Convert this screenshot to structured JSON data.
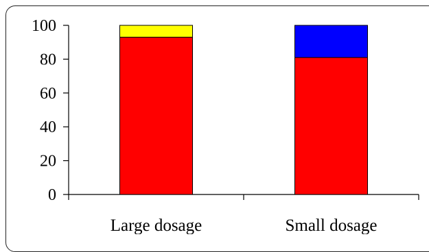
{
  "chart_data": {
    "type": "bar",
    "stacked": true,
    "categories": [
      "Large dosage",
      "Small dosage"
    ],
    "series": [
      {
        "values": [
          93,
          81
        ],
        "color": "#ff0000"
      },
      {
        "values": [
          7,
          0
        ],
        "color": "#ffff00"
      },
      {
        "values": [
          0,
          19
        ],
        "color": "#0000ff"
      }
    ],
    "ylim": [
      0,
      100
    ],
    "yticks": [
      "0",
      "20",
      "40",
      "60",
      "80",
      "100"
    ],
    "title": "",
    "xlabel": "",
    "ylabel": "",
    "legend": "none",
    "grid": false
  }
}
